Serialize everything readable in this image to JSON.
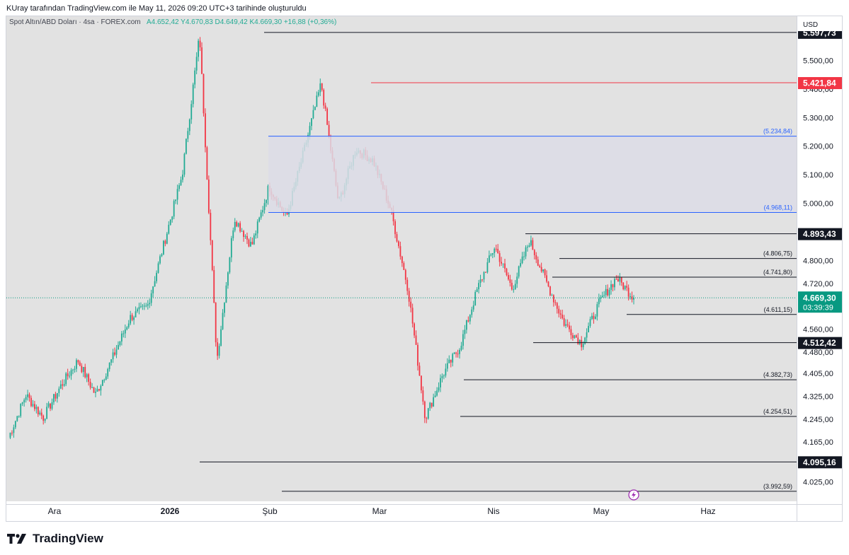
{
  "header": {
    "caption": "KUray tarafından TradingView.com ile May 11, 2026 09:20 UTC+3 tarihinde oluşturuldu"
  },
  "legend": {
    "symbol": "Spot Altın/ABD Doları · 4sa · FOREX.com",
    "ohlc": "A4.652,42  Y4.670,83  D4.649,42  K4.669,30  +16,88 (+0,36%)"
  },
  "brand": {
    "name": "TradingView",
    "icon": "tradingview-logo-icon"
  },
  "colors": {
    "up": "#22ab94",
    "down": "#f23645",
    "zone_fill": "#dcdce6",
    "zone_line": "#2962ff",
    "resistance_red": "#f23645",
    "label_dark": "#131722",
    "current_green": "#089981",
    "background": "#e2e2e2"
  },
  "chart_data": {
    "type": "candlestick",
    "title": "Spot Altın/ABD Doları · 4sa · FOREX.com",
    "currency": "USD",
    "ylim": [
      3960,
      5600
    ],
    "x_ticks": [
      "Ara",
      "2026",
      "Şub",
      "Mar",
      "Nis",
      "May",
      "Haz"
    ],
    "y_ticks": [
      "5.500,00",
      "5.400,00",
      "5.300,00",
      "5.200,00",
      "5.100,00",
      "5.000,00",
      "4.800,00",
      "4.720,00",
      "4.560,00",
      "4.480,00",
      "4.405,00",
      "4.325,00",
      "4.245,00",
      "4.165,00",
      "4.025,00"
    ],
    "price_path": [
      [
        "Ara",
        4180
      ],
      [
        "Ara",
        4330
      ],
      [
        "Ara",
        4250
      ],
      [
        "Ara",
        4360
      ],
      [
        "Ara",
        4450
      ],
      [
        "2026",
        4330
      ],
      [
        "2026",
        4460
      ],
      [
        "2026",
        4600
      ],
      [
        "2026",
        4640
      ],
      [
        "2026",
        4870
      ],
      [
        "2026",
        5100
      ],
      [
        "Şub",
        5590
      ],
      [
        "Şub",
        4450
      ],
      [
        "Şub",
        4950
      ],
      [
        "Şub",
        4850
      ],
      [
        "Şub",
        5060
      ],
      [
        "Şub",
        4950
      ],
      [
        "Şub",
        5180
      ],
      [
        "Mar",
        5420
      ],
      [
        "Mar",
        5000
      ],
      [
        "Mar",
        5190
      ],
      [
        "Mar",
        5150
      ],
      [
        "Mar",
        4980
      ],
      [
        "Mar",
        4700
      ],
      [
        "Mar",
        4250
      ],
      [
        "Nis",
        4400
      ],
      [
        "Nis",
        4500
      ],
      [
        "Nis",
        4700
      ],
      [
        "Nis",
        4850
      ],
      [
        "Nis",
        4700
      ],
      [
        "Nis",
        4870
      ],
      [
        "May",
        4720
      ],
      [
        "May",
        4580
      ],
      [
        "May",
        4510
      ],
      [
        "May",
        4650
      ],
      [
        "May",
        4740
      ],
      [
        "May",
        4669.3
      ]
    ],
    "levels": [
      {
        "price": 5597.73,
        "label": "5.597,73",
        "style": "dark-badge"
      },
      {
        "price": 5421.84,
        "label": "5.421,84",
        "style": "red-badge"
      },
      {
        "price": 5234.84,
        "label": "(5.234,84)",
        "style": "blue-text"
      },
      {
        "price": 4968.11,
        "label": "(4.968,11)",
        "style": "blue-text"
      },
      {
        "price": 4893.43,
        "label": "4.893,43",
        "style": "dark-badge"
      },
      {
        "price": 4806.75,
        "label": "(4.806,75)",
        "style": "text"
      },
      {
        "price": 4741.8,
        "label": "(4.741,80)",
        "style": "text"
      },
      {
        "price": 4611.15,
        "label": "(4.611,15)",
        "style": "text"
      },
      {
        "price": 4512.42,
        "label": "4.512,42",
        "style": "dark-badge"
      },
      {
        "price": 4382.73,
        "label": "(4.382,73)",
        "style": "text"
      },
      {
        "price": 4254.51,
        "label": "(4.254,51)",
        "style": "text"
      },
      {
        "price": 4095.16,
        "label": "4.095,16",
        "style": "dark-badge"
      },
      {
        "price": 3992.59,
        "label": "(3.992,59)",
        "style": "text"
      }
    ],
    "zone": {
      "from": 4968.11,
      "to": 5234.84
    },
    "current": {
      "price": 4669.3,
      "label": "4.669,30",
      "countdown": "03:39:39"
    },
    "grid": false,
    "legend_position": "top-left"
  }
}
